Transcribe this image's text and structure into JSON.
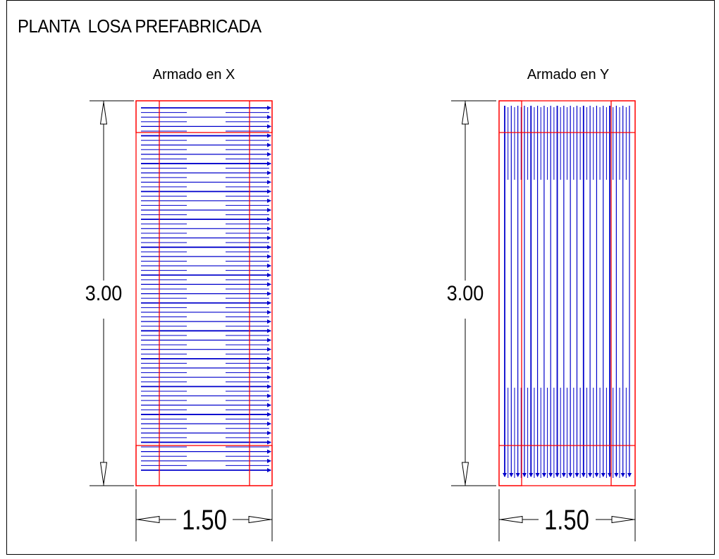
{
  "title": "PLANTA  LOSA PREFABRICADA",
  "colors": {
    "frame": "#000000",
    "slab_outline": "#ff0000",
    "reinforcement": "#0000cc",
    "dimension": "#000000"
  },
  "panels": [
    {
      "id": "x",
      "label": "Armado en X",
      "reinforcement_direction": "horizontal",
      "height_dimension": "3.00",
      "width_dimension": "1.50"
    },
    {
      "id": "y",
      "label": "Armado en Y",
      "reinforcement_direction": "vertical",
      "height_dimension": "3.00",
      "width_dimension": "1.50"
    }
  ]
}
